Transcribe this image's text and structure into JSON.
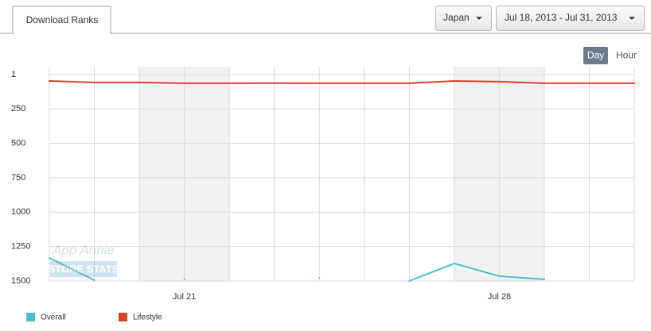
{
  "tab": "Download Ranks",
  "country": "Japan",
  "date_range": "Jul 18, 2013 - Jul 31, 2013",
  "granularity": [
    "Day",
    "Hour"
  ],
  "watermark": [
    "App Annie",
    "STORE STATS"
  ],
  "chart_data": {
    "type": "line",
    "categories": [
      null,
      null,
      null,
      "Jul 21",
      null,
      null,
      null,
      null,
      null,
      null,
      "Jul 28",
      null,
      null,
      null
    ],
    "series": [
      {
        "name": "Overall",
        "color": "#4bbfcb",
        "values": [
          1333,
          1494,
          null,
          1488,
          null,
          null,
          1477,
          null,
          1500,
          1373,
          1465,
          1488,
          null,
          null
        ]
      },
      {
        "name": "Lifestyle",
        "color": "#d9442b",
        "values": [
          47,
          58,
          58,
          64,
          64,
          63,
          64,
          64,
          64,
          47,
          52,
          64,
          64,
          64
        ]
      }
    ],
    "ylim": [
      1500,
      1
    ],
    "yticks": [
      1,
      250,
      500,
      750,
      1000,
      1250,
      1500
    ],
    "grid": true
  }
}
